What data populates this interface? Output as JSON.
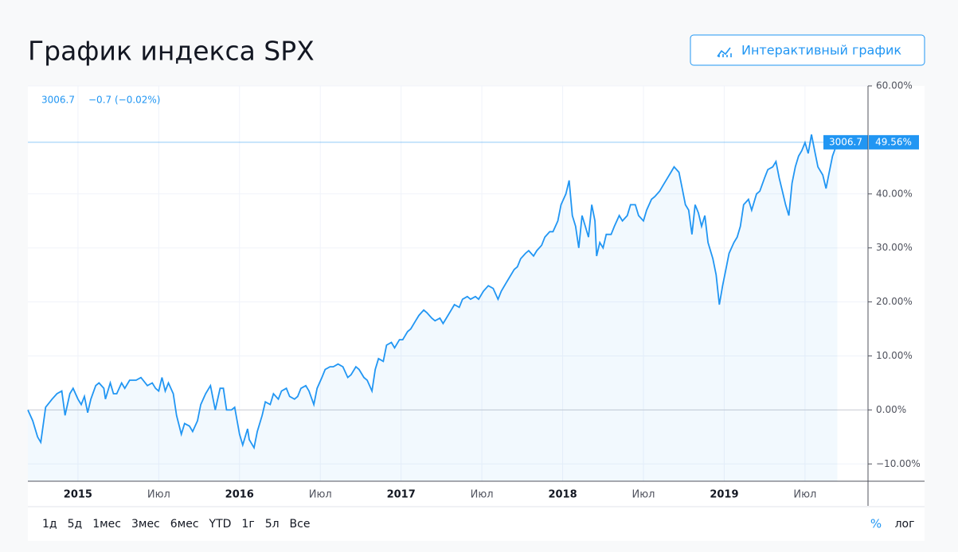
{
  "header": {
    "title": "График индекса SPX",
    "button": "Интерактивный график"
  },
  "chart_data": {
    "type": "line",
    "last_price": "3006.7",
    "change": "−0.7 (−0.02%)",
    "last_value_label": "49.56%",
    "x": [
      2014.69,
      2014.72,
      2014.75,
      2014.77,
      2014.8,
      2014.84,
      2014.87,
      2014.9,
      2014.92,
      2014.95,
      2014.97,
      2015.0,
      2015.02,
      2015.04,
      2015.06,
      2015.08,
      2015.11,
      2015.13,
      2015.16,
      2015.17,
      2015.2,
      2015.22,
      2015.24,
      2015.27,
      2015.29,
      2015.32,
      2015.36,
      2015.39,
      2015.43,
      2015.46,
      2015.48,
      2015.5,
      2015.52,
      2015.54,
      2015.56,
      2015.59,
      2015.61,
      2015.64,
      2015.66,
      2015.69,
      2015.71,
      2015.74,
      2015.76,
      2015.79,
      2015.82,
      2015.84,
      2015.85,
      2015.88,
      2015.9,
      2015.92,
      2015.95,
      2015.97,
      2016.0,
      2016.02,
      2016.05,
      2016.06,
      2016.09,
      2016.11,
      2016.14,
      2016.16,
      2016.19,
      2016.21,
      2016.24,
      2016.26,
      2016.29,
      2016.31,
      2016.34,
      2016.36,
      2016.38,
      2016.41,
      2016.43,
      2016.46,
      2016.48,
      2016.51,
      2016.53,
      2016.56,
      2016.58,
      2016.61,
      2016.64,
      2016.67,
      2016.69,
      2016.72,
      2016.74,
      2016.77,
      2016.79,
      2016.82,
      2016.84,
      2016.86,
      2016.89,
      2016.91,
      2016.94,
      2016.96,
      2016.99,
      2017.01,
      2017.04,
      2017.06,
      2017.09,
      2017.11,
      2017.14,
      2017.16,
      2017.19,
      2017.21,
      2017.24,
      2017.26,
      2017.28,
      2017.31,
      2017.33,
      2017.36,
      2017.38,
      2017.41,
      2017.43,
      2017.46,
      2017.48,
      2017.51,
      2017.54,
      2017.57,
      2017.6,
      2017.62,
      2017.65,
      2017.67,
      2017.7,
      2017.72,
      2017.74,
      2017.77,
      2017.79,
      2017.82,
      2017.84,
      2017.87,
      2017.89,
      2017.92,
      2017.94,
      2017.97,
      2017.99,
      2018.02,
      2018.04,
      2018.06,
      2018.08,
      2018.1,
      2018.12,
      2018.14,
      2018.16,
      2018.18,
      2018.2,
      2018.21,
      2018.23,
      2018.25,
      2018.27,
      2018.3,
      2018.32,
      2018.35,
      2018.37,
      2018.4,
      2018.42,
      2018.45,
      2018.47,
      2018.5,
      2018.52,
      2018.55,
      2018.57,
      2018.6,
      2018.62,
      2018.65,
      2018.67,
      2018.69,
      2018.72,
      2018.74,
      2018.76,
      2018.78,
      2018.8,
      2018.82,
      2018.84,
      2018.86,
      2018.88,
      2018.9,
      2018.93,
      2018.95,
      2018.97,
      2018.99,
      2019.01,
      2019.03,
      2019.06,
      2019.08,
      2019.1,
      2019.12,
      2019.15,
      2019.17,
      2019.2,
      2019.22,
      2019.25,
      2019.27,
      2019.3,
      2019.32,
      2019.34,
      2019.36,
      2019.38,
      2019.4,
      2019.42,
      2019.44,
      2019.46,
      2019.48,
      2019.5,
      2019.52,
      2019.54,
      2019.56,
      2019.58,
      2019.61,
      2019.63,
      2019.65,
      2019.67,
      2019.7
    ],
    "series": [
      {
        "color": "#2196f3",
        "values": [
          0,
          -2,
          -5,
          -6,
          0.5,
          2,
          3,
          3.5,
          -1,
          3,
          4,
          2,
          1,
          2.5,
          -0.5,
          2,
          4.5,
          5,
          4,
          2,
          5,
          3,
          3,
          5,
          4,
          5.5,
          5.5,
          6,
          4.5,
          5,
          4,
          3.5,
          6,
          3.5,
          5,
          3,
          -1,
          -4.5,
          -2.5,
          -3,
          -4,
          -2,
          1,
          3,
          4.5,
          1.5,
          0,
          4,
          4,
          0,
          0,
          0.5,
          -4.5,
          -6.5,
          -3.5,
          -5.5,
          -7,
          -4,
          -1,
          1.5,
          1,
          3,
          2,
          3.5,
          4,
          2.5,
          2,
          2.5,
          4,
          4.5,
          3.5,
          1,
          4,
          6,
          7.5,
          8,
          8,
          8.5,
          8,
          6,
          6.5,
          8,
          7.5,
          6,
          5.5,
          3.5,
          7.5,
          9.5,
          9,
          12,
          12.5,
          11.5,
          13,
          13,
          14.5,
          15,
          16.5,
          17.5,
          18.5,
          18,
          17,
          16.5,
          17,
          16,
          17,
          18.5,
          19.5,
          19,
          20.5,
          21,
          20.5,
          21,
          20.5,
          22,
          23,
          22.5,
          20.5,
          22,
          23.5,
          24.5,
          26,
          26.5,
          28,
          29,
          29.5,
          28.5,
          29.5,
          30.5,
          32,
          33,
          33,
          35,
          38,
          40,
          42.5,
          36,
          34,
          30,
          36,
          34,
          32,
          38,
          35,
          28.5,
          31,
          30,
          32.5,
          32.5,
          34,
          36,
          35,
          36,
          38,
          38,
          36,
          35,
          37,
          39,
          39.5,
          40.5,
          41.5,
          43,
          44,
          45,
          44,
          41,
          38,
          37,
          32.5,
          38,
          36.5,
          34,
          36,
          31,
          28,
          25,
          19.5,
          23,
          26,
          29,
          31,
          32,
          34,
          38,
          39,
          37,
          40,
          40.5,
          43,
          44.5,
          45,
          46,
          43,
          40.5,
          38,
          36,
          42,
          45,
          47,
          48,
          49.5,
          47.5,
          51,
          48,
          45,
          43.5,
          41,
          44,
          47,
          49.56
        ]
      }
    ],
    "xlim": [
      2014.69,
      2019.89
    ],
    "xticks": [
      {
        "value": 2015,
        "label": "2015"
      },
      {
        "value": 2015.5,
        "label": "Июл"
      },
      {
        "value": 2016,
        "label": "2016"
      },
      {
        "value": 2016.5,
        "label": "Июл"
      },
      {
        "value": 2017,
        "label": "2017"
      },
      {
        "value": 2017.5,
        "label": "Июл"
      },
      {
        "value": 2018,
        "label": "2018"
      },
      {
        "value": 2018.5,
        "label": "Июл"
      },
      {
        "value": 2019,
        "label": "2019"
      },
      {
        "value": 2019.5,
        "label": "Июл"
      }
    ],
    "ylim": [
      -13.2,
      60
    ],
    "yticks": [
      {
        "value": -10,
        "label": "−10.00%"
      },
      {
        "value": 0,
        "label": "0.00%"
      },
      {
        "value": 10,
        "label": "10.00%"
      },
      {
        "value": 20,
        "label": "20.00%"
      },
      {
        "value": 30,
        "label": "30.00%"
      },
      {
        "value": 40,
        "label": "40.00%"
      },
      {
        "value": 60,
        "label": "60.00%"
      }
    ],
    "grid": true
  },
  "ranges": [
    "1д",
    "5д",
    "1мес",
    "3мес",
    "6мес",
    "YTD",
    "1г",
    "5л",
    "Все"
  ],
  "scales": [
    "%",
    "лог"
  ]
}
